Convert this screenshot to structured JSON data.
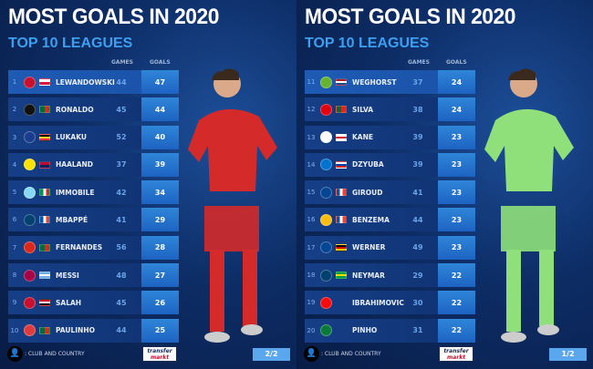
{
  "panels": [
    {
      "title": "MOST GOALS IN 2020",
      "subtitle": "TOP 10 LEAGUES",
      "games_header": "GAMES",
      "goals_header": "GOALS",
      "legend": ": CLUB AND COUNTRY",
      "logo": "transfermarkt",
      "page": "2/2",
      "kit_color": "#d42a2a",
      "rows": [
        {
          "rank": "1",
          "name": "LEWANDOWSKI",
          "games": "44",
          "goals": "47",
          "club": "#c8102e",
          "flag": [
            "#ffffff",
            "#dc143c"
          ]
        },
        {
          "rank": "2",
          "name": "RONALDO",
          "games": "45",
          "goals": "44",
          "club": "#111111",
          "flag": [
            "#046a38",
            "#da291c"
          ]
        },
        {
          "rank": "3",
          "name": "LUKAKU",
          "games": "52",
          "goals": "40",
          "club": "#1a3d8f",
          "flag": [
            "#000000",
            "#fdda24",
            "#ef3340"
          ]
        },
        {
          "rank": "4",
          "name": "HAALAND",
          "games": "37",
          "goals": "39",
          "club": "#fde100",
          "flag": [
            "#ba0c2f",
            "#00205b"
          ]
        },
        {
          "rank": "5",
          "name": "IMMOBILE",
          "games": "42",
          "goals": "34",
          "club": "#87d8f7",
          "flag": [
            "#009246",
            "#ffffff",
            "#ce2b37"
          ]
        },
        {
          "rank": "6",
          "name": "MBAPPÉ",
          "games": "41",
          "goals": "29",
          "club": "#004170",
          "flag": [
            "#0055a4",
            "#ffffff",
            "#ef4135"
          ]
        },
        {
          "rank": "7",
          "name": "FERNANDES",
          "games": "56",
          "goals": "28",
          "club": "#da291c",
          "flag": [
            "#046a38",
            "#da291c"
          ]
        },
        {
          "rank": "8",
          "name": "MESSI",
          "games": "48",
          "goals": "27",
          "club": "#a50044",
          "flag": [
            "#74acdf",
            "#ffffff",
            "#74acdf"
          ]
        },
        {
          "rank": "9",
          "name": "SALAH",
          "games": "45",
          "goals": "26",
          "club": "#c8102e",
          "flag": [
            "#ce1126",
            "#ffffff",
            "#000000"
          ]
        },
        {
          "rank": "10",
          "name": "PAULINHO",
          "games": "44",
          "goals": "25",
          "club": "#e03a3e",
          "flag": [
            "#046a38",
            "#da291c"
          ]
        }
      ]
    },
    {
      "title": "MOST GOALS IN 2020",
      "subtitle": "TOP 10 LEAGUES",
      "games_header": "GAMES",
      "goals_header": "GOALS",
      "legend": ": CLUB AND COUNTRY",
      "logo": "transfermarkt",
      "page": "1/2",
      "kit_color": "#8fe07a",
      "rows": [
        {
          "rank": "11",
          "name": "WEGHORST",
          "games": "37",
          "goals": "24",
          "club": "#65b32e",
          "flag": [
            "#ae1c28",
            "#ffffff",
            "#21468b"
          ]
        },
        {
          "rank": "12",
          "name": "SILVA",
          "games": "38",
          "goals": "24",
          "club": "#e1000f",
          "flag": [
            "#046a38",
            "#da291c"
          ]
        },
        {
          "rank": "13",
          "name": "KANE",
          "games": "39",
          "goals": "23",
          "club": "#ffffff",
          "flag": [
            "#ffffff",
            "#ce1124",
            "#ffffff"
          ]
        },
        {
          "rank": "14",
          "name": "DZYUBA",
          "games": "39",
          "goals": "23",
          "club": "#0073cf",
          "flag": [
            "#ffffff",
            "#0039a6",
            "#d52b1e"
          ]
        },
        {
          "rank": "15",
          "name": "GIROUD",
          "games": "41",
          "goals": "23",
          "club": "#034694",
          "flag": [
            "#0055a4",
            "#ffffff",
            "#ef4135"
          ]
        },
        {
          "rank": "16",
          "name": "BENZEMA",
          "games": "44",
          "goals": "23",
          "club": "#febe10",
          "flag": [
            "#0055a4",
            "#ffffff",
            "#ef4135"
          ]
        },
        {
          "rank": "17",
          "name": "WERNER",
          "games": "49",
          "goals": "23",
          "club": "#034694",
          "flag": [
            "#000000",
            "#dd0000",
            "#ffce00"
          ]
        },
        {
          "rank": "18",
          "name": "NEYMAR",
          "games": "29",
          "goals": "22",
          "club": "#004170",
          "flag": [
            "#009c3b",
            "#ffdf00",
            "#009c3b"
          ]
        },
        {
          "rank": "19",
          "name": "IBRAHIMOVIC",
          "games": "30",
          "goals": "22",
          "club": "#fb090b",
          "flag": []
        },
        {
          "rank": "20",
          "name": "PINHO",
          "games": "31",
          "goals": "22",
          "club": "#0a7a3a",
          "flag": []
        }
      ]
    }
  ]
}
